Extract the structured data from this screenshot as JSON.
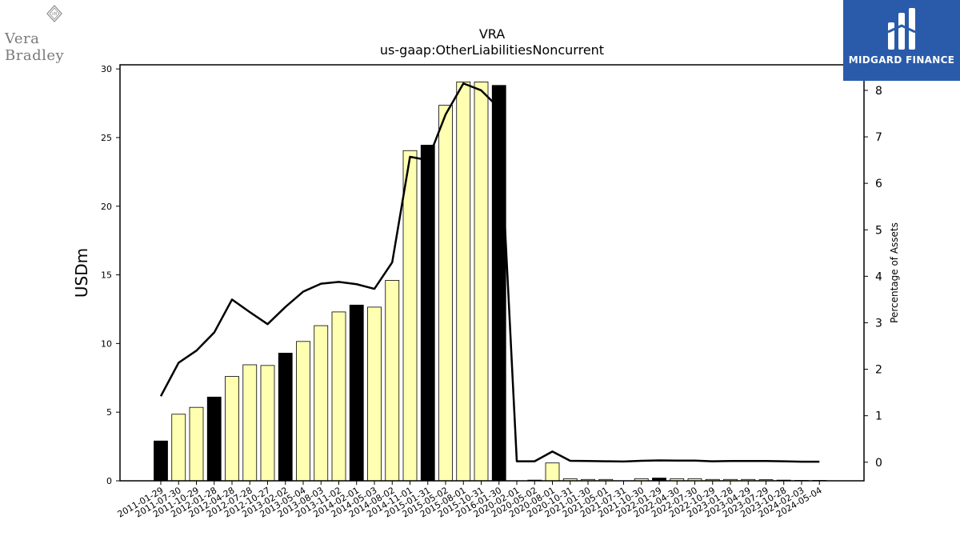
{
  "chart_data": {
    "type": "bar",
    "title": "VRA",
    "subtitle": "us-gaap:OtherLiabilitiesNoncurrent",
    "ylabel": "USDm",
    "y2label": "Percentage of Assets",
    "ylim": [
      0,
      30.3
    ],
    "y2lim": [
      -0.4,
      8.55
    ],
    "yticks": [
      0,
      5,
      10,
      15,
      20,
      25,
      30
    ],
    "y2ticks": [
      0,
      1,
      2,
      3,
      4,
      5,
      6,
      7,
      8
    ],
    "grid": false,
    "categories": [
      "2011-01-29",
      "2011-07-30",
      "2011-10-29",
      "2012-01-28",
      "2012-04-28",
      "2012-07-28",
      "2012-10-27",
      "2013-02-02",
      "2013-05-04",
      "2013-08-03",
      "2013-11-02",
      "2014-02-01",
      "2014-05-03",
      "2014-08-02",
      "2014-11-01",
      "2015-01-31",
      "2015-05-02",
      "2015-08-01",
      "2015-10-31",
      "2016-01-30",
      "2020-02-01",
      "2020-05-02",
      "2020-08-01",
      "2020-10-31",
      "2021-01-30",
      "2021-05-01",
      "2021-07-31",
      "2021-10-30",
      "2022-01-29",
      "2022-04-30",
      "2022-07-30",
      "2022-10-29",
      "2023-01-28",
      "2023-04-29",
      "2023-07-29",
      "2023-10-28",
      "2024-02-03",
      "2024-05-04"
    ],
    "series": [
      {
        "values": [
          2.9,
          4.85,
          5.35,
          6.1,
          7.6,
          8.45,
          8.4,
          9.3,
          10.15,
          11.3,
          12.3,
          12.8,
          12.65,
          14.6,
          24.05,
          24.45,
          27.35,
          29.05,
          29.05,
          28.8,
          0,
          0.05,
          1.3,
          0.15,
          0.1,
          0.1,
          0,
          0.15,
          0.2,
          0.15,
          0.15,
          0.1,
          0.1,
          0.1,
          0.08,
          0.05,
          0.03,
          0.03
        ],
        "colors": [
          "#000000",
          "#ffffb2",
          "#ffffb2",
          "#000000",
          "#ffffb2",
          "#ffffb2",
          "#ffffb2",
          "#000000",
          "#ffffb2",
          "#ffffb2",
          "#ffffb2",
          "#000000",
          "#ffffb2",
          "#ffffb2",
          "#ffffb2",
          "#000000",
          "#ffffb2",
          "#ffffb2",
          "#ffffb2",
          "#000000",
          "#ffffb2",
          "#ffffb2",
          "#ffffb2",
          "#ffffb2",
          "#ffffb2",
          "#ffffb2",
          "#ffffb2",
          "#ffffb2",
          "#000000",
          "#ffffb2",
          "#ffffb2",
          "#ffffb2",
          "#ffffb2",
          "#ffffb2",
          "#ffffb2",
          "#ffffb2",
          "#ffffb2",
          "#ffffb2"
        ]
      },
      {
        "axis": "right",
        "type": "line",
        "color": "#000000",
        "values": [
          1.42,
          2.14,
          2.4,
          2.79,
          3.5,
          3.23,
          2.97,
          3.34,
          3.67,
          3.84,
          3.88,
          3.83,
          3.73,
          4.3,
          6.57,
          6.5,
          7.48,
          8.15,
          8.0,
          7.62,
          0.02,
          0.02,
          0.23,
          0.03,
          0.025,
          0.02,
          0.015,
          0.03,
          0.04,
          0.035,
          0.035,
          0.02,
          0.025,
          0.025,
          0.025,
          0.02,
          0.01,
          0.01
        ]
      }
    ]
  },
  "logos": {
    "left_brand": "Vera Bradley",
    "left_mark": "VB",
    "right_brand": "MIDGARD FINANCE"
  }
}
